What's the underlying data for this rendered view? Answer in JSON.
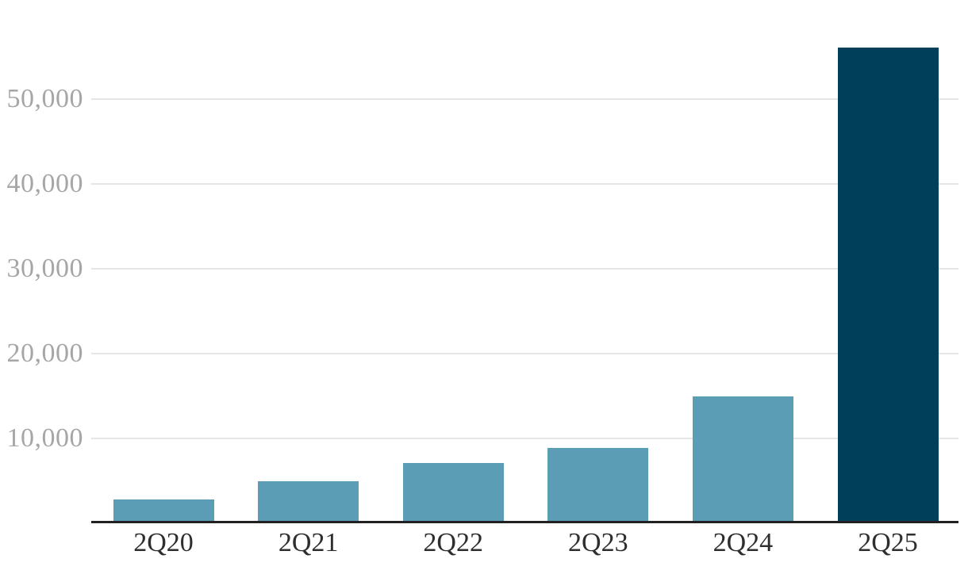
{
  "chart_data": {
    "type": "bar",
    "title": "",
    "xlabel": "",
    "ylabel": "",
    "categories": [
      "2Q20",
      "2Q21",
      "2Q22",
      "2Q23",
      "2Q24",
      "2Q25"
    ],
    "values": [
      2800,
      5000,
      7100,
      8900,
      15000,
      56100
    ],
    "bar_colors": [
      "#5b9db5",
      "#5b9db5",
      "#5b9db5",
      "#5b9db5",
      "#5b9db5",
      "#003f5a"
    ],
    "yticks": [
      {
        "value": 10000,
        "label": "10,000"
      },
      {
        "value": 20000,
        "label": "20,000"
      },
      {
        "value": 30000,
        "label": "30,000"
      },
      {
        "value": 40000,
        "label": "40,000"
      },
      {
        "value": 50000,
        "label": "50,000"
      }
    ],
    "ylim": [
      0,
      57500
    ],
    "grid": true,
    "legend_position": "none"
  },
  "colors": {
    "background": "#ffffff",
    "bar_teal": "#5b9db5",
    "bar_navy": "#003f5a",
    "gridline": "#e6e6e6",
    "axis_line": "#212121",
    "ytick_text": "#a6a6a6",
    "xtick_text": "#2e2e2e"
  }
}
